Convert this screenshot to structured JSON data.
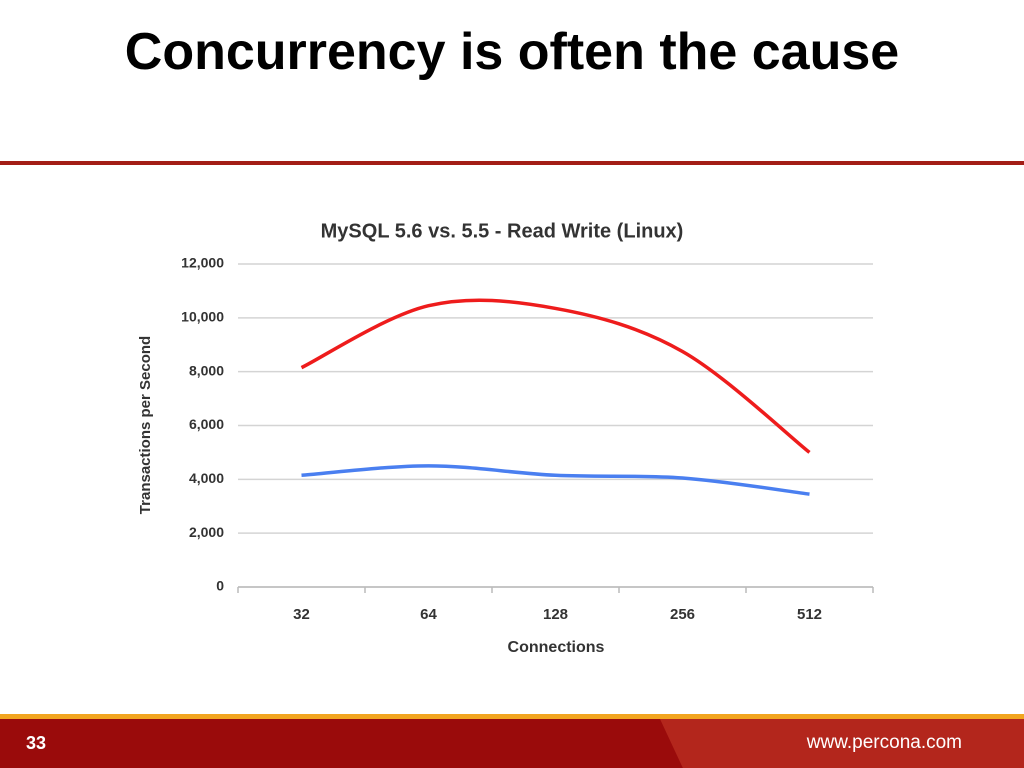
{
  "slide": {
    "title": "Concurrency is often the cause",
    "page_number": "33",
    "url": "www.percona.com"
  },
  "chart_data": {
    "type": "line",
    "title": "MySQL 5.6 vs. 5.5 - Read Write (Linux)",
    "x_label": "Connections",
    "y_label": "Transactions per Second",
    "categories": [
      "32",
      "64",
      "128",
      "256",
      "512"
    ],
    "series": [
      {
        "color": "#ee1c1c",
        "values": [
          8150,
          10450,
          10350,
          8750,
          5000
        ]
      },
      {
        "color": "#4a7ff0",
        "values": [
          4150,
          4500,
          4150,
          4050,
          3450
        ]
      }
    ],
    "ylim": [
      0,
      12000
    ],
    "yticks": [
      0,
      {
        "value": 2000,
        "label": "2,000"
      },
      {
        "value": 4000,
        "label": "4,000"
      },
      {
        "value": 6000,
        "label": "6,000"
      },
      {
        "value": 8000,
        "label": "8,000"
      },
      {
        "value": 10000,
        "label": "10,000"
      },
      {
        "value": 12000,
        "label": "12,000"
      }
    ],
    "grid": true
  }
}
